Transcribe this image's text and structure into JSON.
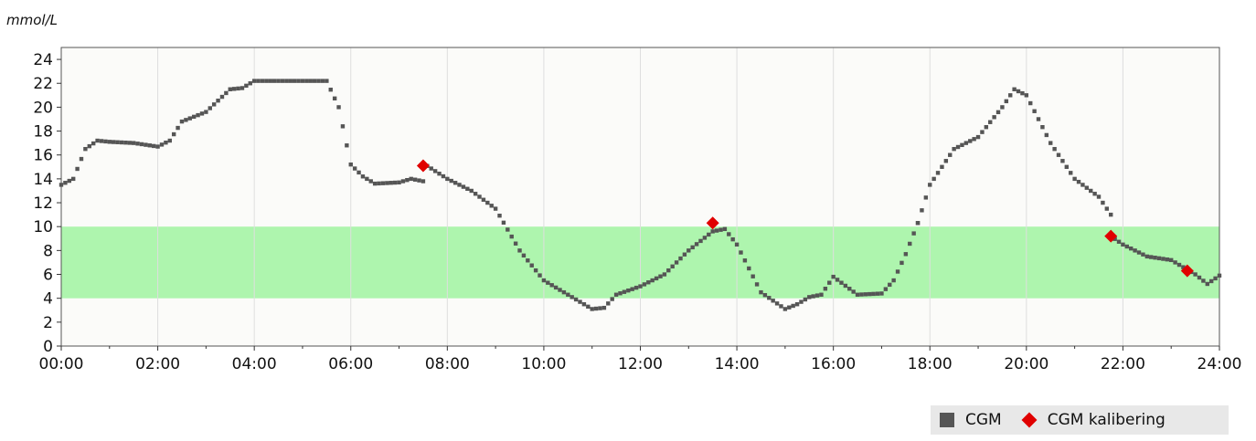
{
  "chart_data": {
    "type": "scatter",
    "unit_label": "mmol/L",
    "x_ticks": [
      "00:00",
      "02:00",
      "04:00",
      "06:00",
      "08:00",
      "10:00",
      "12:00",
      "14:00",
      "16:00",
      "18:00",
      "20:00",
      "22:00",
      "24:00"
    ],
    "y_ticks": [
      "0",
      "2",
      "4",
      "6",
      "8",
      "10",
      "12",
      "14",
      "16",
      "18",
      "20",
      "22",
      "24"
    ],
    "xlim": [
      "00:00",
      "24:00"
    ],
    "ylim": [
      0,
      25
    ],
    "target_range": [
      4,
      10
    ],
    "grid": "vertical",
    "legend_position": "bottom-right",
    "colors": {
      "cgm": "#555555",
      "calibration": "#e00000",
      "target_band": "#aef5ae",
      "plot_bg": "#fbfbf9"
    },
    "series": [
      {
        "name": "CGM",
        "marker": "square",
        "segments": [
          {
            "x": [
              "00:00",
              "00:15",
              "00:30",
              "00:45",
              "01:00",
              "01:30",
              "02:00",
              "02:15",
              "02:30",
              "03:00",
              "03:30",
              "03:45",
              "04:00",
              "04:30",
              "05:00",
              "05:30",
              "05:45",
              "06:00",
              "06:15",
              "06:30",
              "07:00",
              "07:15",
              "07:30"
            ],
            "y": [
              13.5,
              14,
              16.5,
              17.2,
              17.1,
              17,
              16.7,
              17.2,
              18.8,
              19.6,
              21.5,
              21.6,
              22.2,
              22.2,
              22.2,
              22.2,
              20,
              15.2,
              14.2,
              13.6,
              13.7,
              14,
              13.8
            ]
          },
          {
            "x": [
              "07:30",
              "08:00",
              "08:30",
              "09:00",
              "09:30",
              "10:00",
              "10:30",
              "11:00",
              "11:15",
              "11:30",
              "12:00",
              "12:30",
              "13:00",
              "13:30",
              "13:45",
              "14:00",
              "14:30",
              "15:00",
              "15:15",
              "15:30",
              "15:45",
              "16:00",
              "16:30",
              "17:00",
              "17:15",
              "17:30",
              "17:45"
            ],
            "y": [
              15.3,
              14,
              13,
              11.5,
              8,
              5.5,
              4.3,
              3.1,
              3.2,
              4.3,
              5,
              6,
              8,
              9.6,
              9.8,
              8.5,
              4.5,
              3.1,
              3.5,
              4.1,
              4.3,
              5.8,
              4.3,
              4.4,
              5.5,
              7.7,
              10.3
            ]
          },
          {
            "x": [
              "17:45",
              "18:00",
              "18:30",
              "19:00",
              "19:30",
              "19:45",
              "20:00",
              "20:30",
              "21:00",
              "21:30",
              "21:45"
            ],
            "y": [
              10.3,
              13.5,
              16.5,
              17.5,
              20,
              21.5,
              21,
              17,
              14,
              12.5,
              11
            ]
          },
          {
            "x": [
              "21:45",
              "22:00",
              "22:30",
              "23:00",
              "23:30",
              "23:45",
              "24:00"
            ],
            "y": [
              9.2,
              8.5,
              7.5,
              7.2,
              6,
              5.2,
              5.9
            ]
          }
        ]
      },
      {
        "name": "CGM kalibering",
        "marker": "diamond",
        "x": [
          "07:30",
          "13:30",
          "21:45",
          "23:20"
        ],
        "y": [
          15.1,
          10.3,
          9.2,
          6.3
        ]
      }
    ]
  }
}
